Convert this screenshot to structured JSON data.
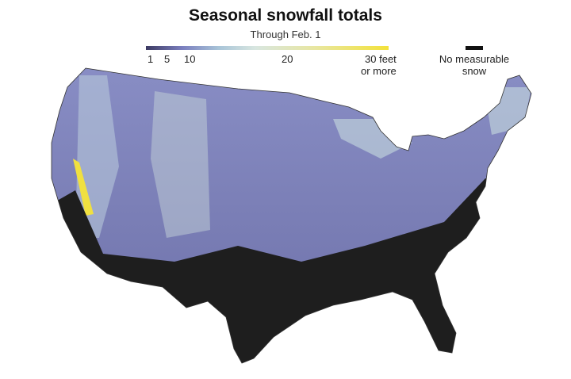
{
  "title": "Seasonal snowfall totals",
  "subtitle": "Through Feb. 1",
  "legend": {
    "ticks": [
      "1",
      "5",
      "10",
      "20"
    ],
    "max_label_line1": "30 feet",
    "max_label_line2": "or more",
    "no_snow_line1": "No measurable",
    "no_snow_line2": "snow",
    "colors": {
      "low": "#3c3a62",
      "mid": "#a8c4d8",
      "high": "#f3e23a",
      "none": "#111111"
    }
  },
  "map": {
    "region": "Contiguous United States",
    "base_color": "#7d80b8",
    "no_snow_color": "#1e1e1e"
  }
}
